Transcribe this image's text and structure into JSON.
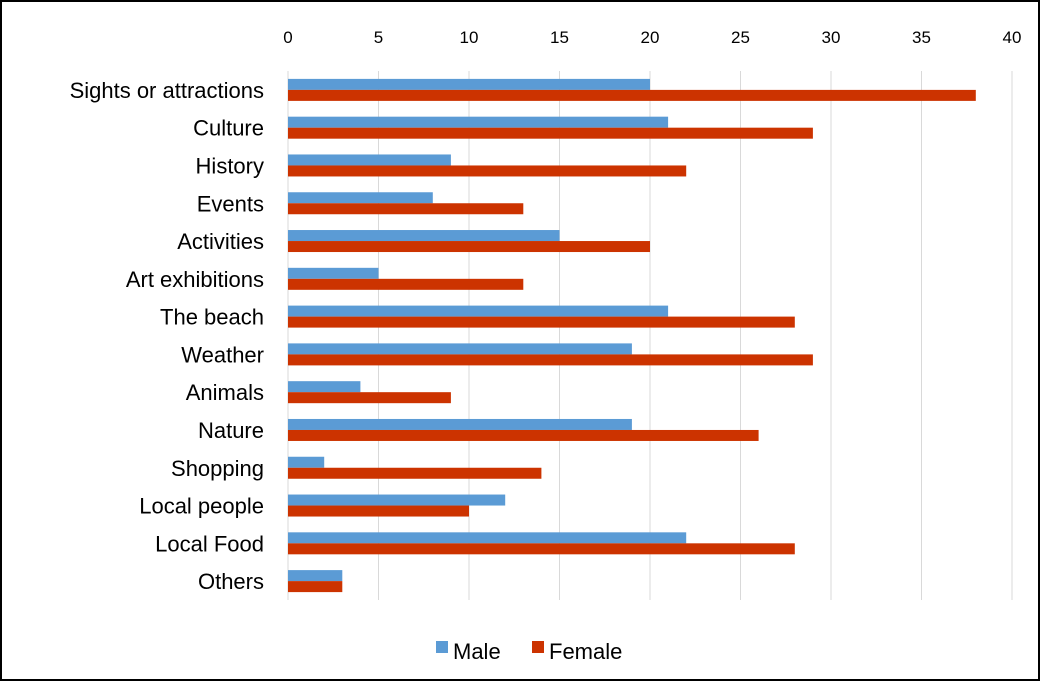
{
  "chart_data": {
    "type": "bar",
    "orientation": "horizontal",
    "categories": [
      "Sights or attractions",
      "Culture",
      "History",
      "Events",
      "Activities",
      "Art exhibitions",
      "The beach",
      "Weather",
      "Animals",
      "Nature",
      "Shopping",
      "Local people",
      "Local Food",
      "Others"
    ],
    "series": [
      {
        "name": "Male",
        "color": "#5b9bd5",
        "values": [
          20,
          21,
          9,
          8,
          15,
          5,
          21,
          19,
          4,
          19,
          2,
          12,
          22,
          3
        ]
      },
      {
        "name": "Female",
        "color": "#cc3300",
        "values": [
          38,
          29,
          22,
          13,
          20,
          13,
          28,
          29,
          9,
          26,
          14,
          10,
          28,
          3
        ]
      }
    ],
    "xlim": [
      0,
      40
    ],
    "x_ticks": [
      "0",
      "5",
      "10",
      "15",
      "20",
      "25",
      "30",
      "35",
      "40"
    ],
    "x_axis_position": "top",
    "grid": true,
    "legend_position": "bottom"
  }
}
